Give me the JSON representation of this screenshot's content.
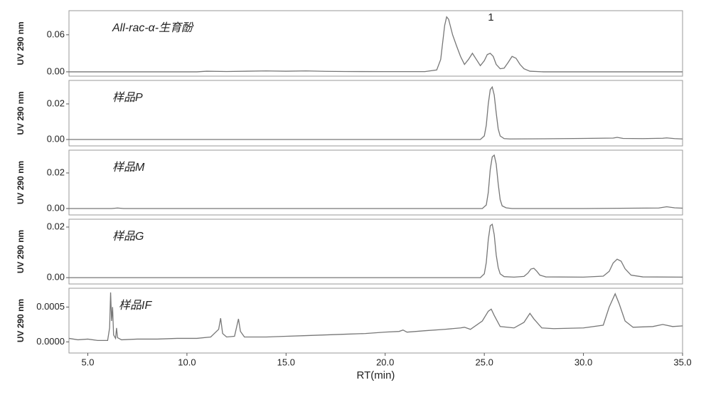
{
  "chart_data": [
    {
      "type": "line",
      "title": "All-rac-α-生育酚",
      "y_label": "UV 290 nm",
      "color": "#777777",
      "xlim": [
        4.05,
        35
      ],
      "ylim": [
        -0.007,
        0.099
      ],
      "yticks": [
        {
          "value": 0,
          "label": "0.00"
        },
        0.06
      ],
      "x": [
        4.05,
        8,
        10.5,
        11,
        12,
        13,
        14,
        15,
        16,
        17,
        18,
        20,
        22,
        22.6,
        22.8,
        23.0,
        23.1,
        23.2,
        23.4,
        23.6,
        23.8,
        24.0,
        24.2,
        24.4,
        24.6,
        24.8,
        25.0,
        25.15,
        25.3,
        25.45,
        25.6,
        25.8,
        26.0,
        26.2,
        26.4,
        26.6,
        26.8,
        27.0,
        27.3,
        28,
        30,
        35
      ],
      "values": [
        0,
        0,
        0,
        0.001,
        0.0005,
        0.001,
        0.0015,
        0.001,
        0.0015,
        0.0008,
        0.0005,
        0.0003,
        0.0003,
        0.003,
        0.02,
        0.075,
        0.089,
        0.085,
        0.06,
        0.042,
        0.025,
        0.012,
        0.02,
        0.03,
        0.02,
        0.01,
        0.018,
        0.028,
        0.03,
        0.025,
        0.012,
        0.005,
        0.006,
        0.015,
        0.025,
        0.022,
        0.012,
        0.005,
        0.001,
        0,
        0,
        0
      ],
      "annotations": [
        {
          "text": "1",
          "x": 25.33,
          "y": 0.0877
        }
      ]
    },
    {
      "type": "line",
      "title": "样品P",
      "y_label": "UV 290 nm",
      "color": "#777777",
      "xlim": [
        4.05,
        35
      ],
      "ylim": [
        -0.0036,
        0.0332
      ],
      "yticks": [
        {
          "value": 0,
          "label": "0.00"
        },
        0.02
      ],
      "x": [
        4.05,
        20,
        24.8,
        25.0,
        25.1,
        25.2,
        25.3,
        25.4,
        25.5,
        25.6,
        25.7,
        25.8,
        26.0,
        26.3,
        28,
        30,
        31.5,
        31.7,
        32,
        33,
        34,
        34.2,
        34.6,
        35
      ],
      "values": [
        0,
        0,
        0,
        0.002,
        0.008,
        0.02,
        0.028,
        0.0295,
        0.025,
        0.015,
        0.006,
        0.002,
        0.0005,
        0.0003,
        0.0004,
        0.0006,
        0.0008,
        0.0012,
        0.0006,
        0.0005,
        0.0007,
        0.0009,
        0.0005,
        0.0003
      ]
    },
    {
      "type": "line",
      "title": "样品M",
      "y_label": "UV 290 nm",
      "color": "#777777",
      "xlim": [
        4.05,
        35
      ],
      "ylim": [
        -0.0036,
        0.0328
      ],
      "yticks": [
        {
          "value": 0,
          "label": "0.00"
        },
        0.02
      ],
      "x": [
        4.05,
        6.2,
        6.5,
        6.8,
        20,
        24.9,
        25.1,
        25.2,
        25.3,
        25.4,
        25.5,
        25.6,
        25.7,
        25.8,
        25.9,
        26.1,
        26.4,
        30,
        33.8,
        34.2,
        34.6,
        35
      ],
      "values": [
        0,
        0,
        0.0003,
        0,
        0,
        0,
        0.002,
        0.009,
        0.022,
        0.029,
        0.03,
        0.025,
        0.014,
        0.005,
        0.0015,
        0.0004,
        0,
        0,
        0.0003,
        0.001,
        0.0004,
        0.0002
      ]
    },
    {
      "type": "line",
      "title": "样品G",
      "y_label": "UV 290 nm",
      "color": "#777777",
      "xlim": [
        4.05,
        35
      ],
      "ylim": [
        -0.0025,
        0.0231
      ],
      "yticks": [
        {
          "value": 0,
          "label": "0.00"
        },
        0.02
      ],
      "x": [
        4.05,
        20,
        24.8,
        25.0,
        25.1,
        25.2,
        25.3,
        25.4,
        25.5,
        25.6,
        25.7,
        25.8,
        26.0,
        26.5,
        27.0,
        27.2,
        27.35,
        27.5,
        27.65,
        27.8,
        28.1,
        30,
        31.0,
        31.3,
        31.5,
        31.7,
        31.9,
        32.1,
        32.4,
        33,
        35
      ],
      "values": [
        0,
        0,
        0,
        0.0015,
        0.006,
        0.015,
        0.0205,
        0.0211,
        0.017,
        0.009,
        0.004,
        0.0015,
        0.0004,
        0.0002,
        0.0005,
        0.0018,
        0.0034,
        0.0037,
        0.0025,
        0.001,
        0.0003,
        0.0002,
        0.0006,
        0.0025,
        0.0058,
        0.0073,
        0.0065,
        0.0035,
        0.001,
        0.0003,
        0.0002
      ]
    },
    {
      "type": "line",
      "title": "样品IF",
      "y_label": "UV 290 nm",
      "color": "#777777",
      "xlim": [
        4.05,
        35
      ],
      "ylim": [
        -0.00016,
        0.00077
      ],
      "yticks": [
        {
          "value": 0,
          "label": "0.0000"
        },
        0.0005
      ],
      "xticks": [
        {
          "value": 5,
          "label": "5.0"
        },
        {
          "value": 10,
          "label": "10.0"
        },
        {
          "value": 15,
          "label": "15.0"
        },
        {
          "value": 20,
          "label": "20.0"
        },
        {
          "value": 25,
          "label": "25.0"
        },
        {
          "value": 30,
          "label": "30.0"
        },
        {
          "value": 35,
          "label": "35.0"
        }
      ],
      "x_label": "RT(min)",
      "x": [
        4.05,
        4.5,
        5,
        5.5,
        6.0,
        6.1,
        6.15,
        6.2,
        6.25,
        6.3,
        6.4,
        6.45,
        6.5,
        6.7,
        7.5,
        8.5,
        9.5,
        10.5,
        11.2,
        11.6,
        11.7,
        11.8,
        12.0,
        12.4,
        12.6,
        12.7,
        12.9,
        14,
        15,
        16,
        17,
        18,
        19,
        20,
        20.7,
        20.9,
        21.1,
        22,
        23,
        23.8,
        24.0,
        24.3,
        24.9,
        25.2,
        25.35,
        25.5,
        25.8,
        26.5,
        27.0,
        27.3,
        27.5,
        27.9,
        28.5,
        30,
        31.0,
        31.3,
        31.6,
        31.8,
        32.1,
        32.5,
        33.5,
        34.0,
        34.5,
        35
      ],
      "values": [
        5e-05,
        3e-05,
        4e-05,
        2e-05,
        2e-05,
        0.0002,
        0.00071,
        0.0003,
        0.0005,
        0.0001,
        5e-05,
        0.0002,
        6e-05,
        3e-05,
        4e-05,
        4e-05,
        5e-05,
        5e-05,
        7e-05,
        0.00018,
        0.00034,
        0.00012,
        7e-05,
        8e-05,
        0.00033,
        0.00015,
        7e-05,
        7e-05,
        8e-05,
        9e-05,
        0.0001,
        0.00011,
        0.00012,
        0.00014,
        0.00015,
        0.00017,
        0.00014,
        0.00016,
        0.00018,
        0.0002,
        0.00021,
        0.00018,
        0.0003,
        0.00044,
        0.00047,
        0.00038,
        0.00022,
        0.0002,
        0.00028,
        0.00041,
        0.00033,
        0.0002,
        0.00019,
        0.0002,
        0.00024,
        0.0005,
        0.00069,
        0.00055,
        0.0003,
        0.00021,
        0.00022,
        0.00025,
        0.00022,
        0.00023
      ]
    }
  ]
}
